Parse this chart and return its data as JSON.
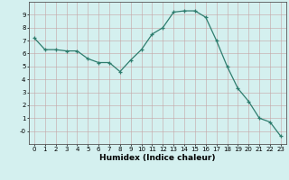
{
  "x": [
    0,
    1,
    2,
    3,
    4,
    5,
    6,
    7,
    8,
    9,
    10,
    11,
    12,
    13,
    14,
    15,
    16,
    17,
    18,
    19,
    20,
    21,
    22,
    23
  ],
  "y": [
    7.2,
    6.3,
    6.3,
    6.2,
    6.2,
    5.6,
    5.3,
    5.3,
    4.6,
    5.5,
    6.3,
    7.5,
    8.0,
    9.2,
    9.3,
    9.3,
    8.8,
    7.0,
    5.0,
    3.3,
    2.3,
    1.0,
    0.7,
    -0.4
  ],
  "line_color": "#2e7d6e",
  "marker": "+",
  "marker_size": 3,
  "marker_linewidth": 0.9,
  "linewidth": 0.9,
  "xlabel": "Humidex (Indice chaleur)",
  "xlim": [
    -0.5,
    23.5
  ],
  "ylim": [
    -1,
    10
  ],
  "ytick_labels": [
    "-0",
    "1",
    "2",
    "3",
    "4",
    "5",
    "6",
    "7",
    "8",
    "9"
  ],
  "ytick_vals": [
    0,
    1,
    2,
    3,
    4,
    5,
    6,
    7,
    8,
    9
  ],
  "xticks": [
    0,
    1,
    2,
    3,
    4,
    5,
    6,
    7,
    8,
    9,
    10,
    11,
    12,
    13,
    14,
    15,
    16,
    17,
    18,
    19,
    20,
    21,
    22,
    23
  ],
  "bg_color": "#d4f0ef",
  "grid_color": "#c4a4a4",
  "grid_linewidth": 0.4,
  "tick_fontsize": 5,
  "xlabel_fontsize": 6.5,
  "xlabel_fontweight": "bold"
}
